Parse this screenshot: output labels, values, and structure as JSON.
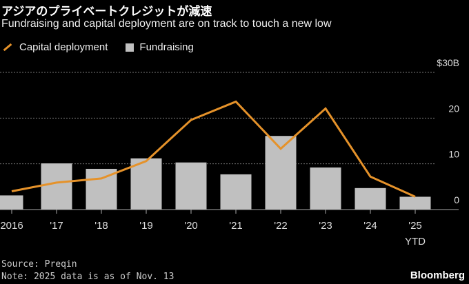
{
  "chart_data": {
    "type": "bar",
    "title": "アジアのプライベートクレジットが減速",
    "subtitle": "Fundraising and capital deployment are on track to touch a new low",
    "categories": [
      "2016",
      "'17",
      "'18",
      "'19",
      "'20",
      "'21",
      "'22",
      "'23",
      "'24",
      "'25"
    ],
    "category_sublabels": [
      "",
      "",
      "",
      "",
      "",
      "",
      "",
      "",
      "",
      "YTD"
    ],
    "series": [
      {
        "name": "Capital deployment",
        "type": "line",
        "color": "#e5922a",
        "values": [
          4.0,
          5.9,
          6.8,
          10.6,
          19.6,
          23.6,
          13.3,
          22.1,
          7.2,
          2.8
        ]
      },
      {
        "name": "Fundraising",
        "type": "bar",
        "color": "#c0c0c0",
        "values": [
          3.1,
          10.1,
          8.9,
          11.2,
          10.3,
          7.7,
          16.1,
          9.2,
          4.7,
          2.8
        ]
      }
    ],
    "ylim": [
      0,
      30
    ],
    "yticks": [
      0,
      10,
      20,
      30
    ],
    "ytick_labels": [
      "0",
      "10",
      "20",
      "$30B"
    ],
    "grid": true,
    "legend_placement": "top-left",
    "source": "Source: Preqin",
    "note": "Note: 2025 data is as of Nov. 13",
    "brand": "Bloomberg"
  }
}
